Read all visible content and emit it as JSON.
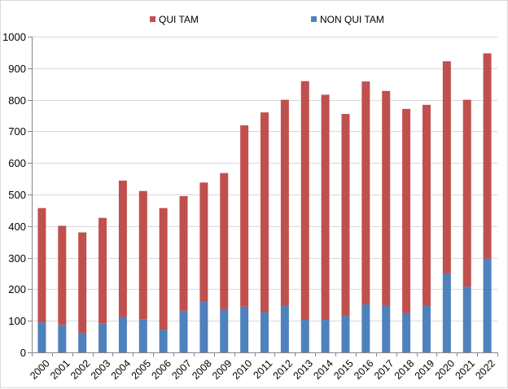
{
  "chart_data": {
    "type": "bar",
    "stacked": true,
    "categories": [
      "2000",
      "2001",
      "2002",
      "2003",
      "2004",
      "2005",
      "2006",
      "2007",
      "2008",
      "2009",
      "2010",
      "2011",
      "2012",
      "2013",
      "2014",
      "2015",
      "2016",
      "2017",
      "2018",
      "2019",
      "2020",
      "2021",
      "2022"
    ],
    "series": [
      {
        "name": "NON QUI TAM",
        "color": "#4f81bd",
        "values": [
          95,
          87,
          62,
          92,
          112,
          105,
          72,
          132,
          160,
          135,
          145,
          127,
          147,
          103,
          103,
          115,
          152,
          147,
          125,
          147,
          250,
          208,
          297
        ]
      },
      {
        "name": "QUI TAM",
        "color": "#c0504d",
        "values": [
          362,
          314,
          318,
          334,
          432,
          406,
          385,
          363,
          378,
          433,
          574,
          633,
          653,
          756,
          713,
          640,
          706,
          681,
          646,
          637,
          672,
          592,
          650
        ]
      }
    ],
    "legend_order": [
      1,
      0
    ],
    "legend_position": "top",
    "ylim": [
      0,
      1000
    ],
    "yticks": [
      0,
      100,
      200,
      300,
      400,
      500,
      600,
      700,
      800,
      900,
      1000
    ],
    "grid": true,
    "title": "",
    "xlabel": "",
    "ylabel": ""
  }
}
